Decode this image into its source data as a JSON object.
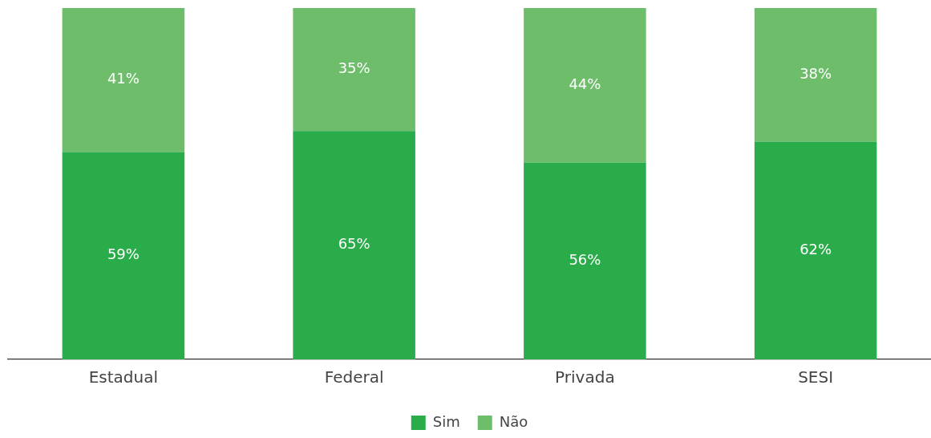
{
  "chart_data": {
    "type": "bar",
    "stacked": true,
    "categories": [
      "Estadual",
      "Federal",
      "Privada",
      "SESI"
    ],
    "series": [
      {
        "name": "Sim",
        "color": "#2aac4a",
        "values": [
          59,
          65,
          56,
          62
        ],
        "value_labels": [
          "59%",
          "65%",
          "56%",
          "62%"
        ]
      },
      {
        "name": "Não",
        "color": "#6dbd6a",
        "values": [
          41,
          35,
          44,
          38
        ],
        "value_labels": [
          "41%",
          "35%",
          "44%",
          "38%"
        ]
      }
    ],
    "legend": "bottom",
    "grid": false
  }
}
